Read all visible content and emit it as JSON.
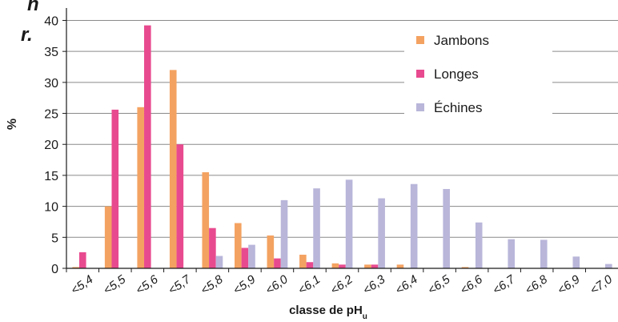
{
  "corner_fragments": [
    "n",
    "r."
  ],
  "chart_data": {
    "type": "bar",
    "xlabel": "classe de pH",
    "xlabel_subscript": "u",
    "ylabel": "%",
    "ylim": [
      0,
      42
    ],
    "yticks": [
      0,
      5,
      10,
      15,
      20,
      25,
      30,
      35,
      40
    ],
    "grid": true,
    "legend_position": "top-right",
    "categories": [
      "<5,4",
      "<5,5",
      "<5,6",
      "<5,7",
      "<5,8",
      "<5,9",
      "<6,0",
      "<6,1",
      "<6,2",
      "<6,3",
      "<6,4",
      "<6,5",
      "<6,6",
      "<6,7",
      "<6,8",
      "<6,9",
      "<7,0"
    ],
    "series": [
      {
        "name": "Jambons",
        "color": "#f4a261",
        "values": [
          0.2,
          10,
          26,
          32,
          15.5,
          7.3,
          5.3,
          2.2,
          0.8,
          0.6,
          0.6,
          0,
          0.2,
          0,
          0,
          0,
          0
        ]
      },
      {
        "name": "Longes",
        "color": "#e84a8f",
        "values": [
          2.6,
          25.6,
          39.2,
          20,
          6.5,
          3.3,
          1.6,
          1.0,
          0.6,
          0.6,
          0,
          0,
          0,
          0,
          0,
          0,
          0
        ]
      },
      {
        "name": "Échines",
        "color": "#b9b6da",
        "values": [
          0,
          0,
          0,
          0,
          2.0,
          3.8,
          11,
          12.9,
          14.3,
          11.3,
          13.6,
          12.8,
          7.4,
          4.7,
          4.6,
          1.9,
          0.7
        ]
      }
    ]
  }
}
